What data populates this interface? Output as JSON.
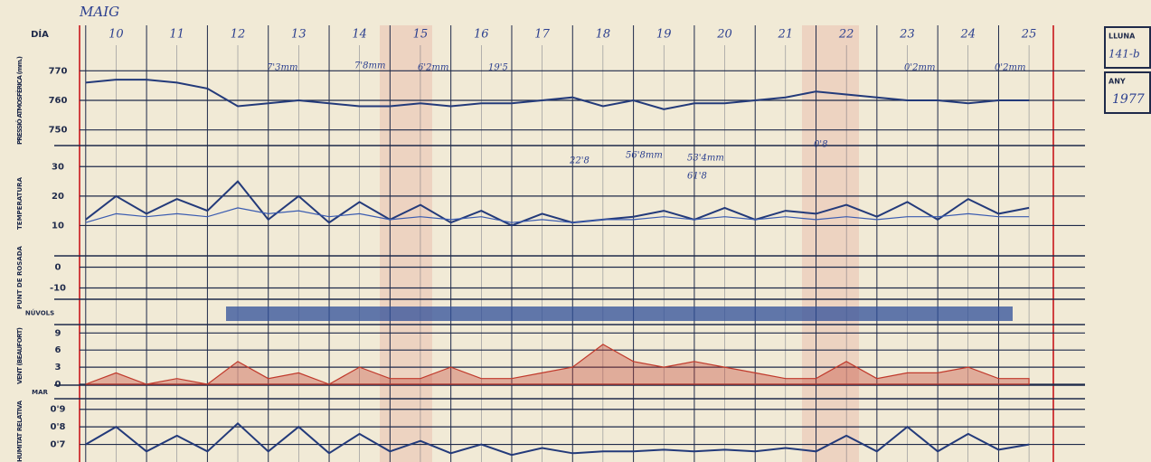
{
  "header": {
    "month": "MAIG",
    "day_label": "DÍA"
  },
  "side": {
    "moon_label": "LLUNA",
    "moon_value": "141-b",
    "year_label": "ANY",
    "year": "1977"
  },
  "chart_data": [
    {
      "type": "line",
      "ylabel": "PRESSIÓ ATMOSFÈRICA (mm.)",
      "xlim": [
        9.4,
        25.4
      ],
      "xticks": [
        10,
        11,
        12,
        13,
        14,
        15,
        16,
        17,
        18,
        19,
        20,
        21,
        22,
        23,
        24,
        25
      ],
      "ylim": [
        745,
        775
      ],
      "yticks": [
        750,
        760,
        770
      ],
      "x": [
        9.5,
        10,
        10.5,
        11,
        11.5,
        12,
        12.5,
        13,
        13.5,
        14,
        14.5,
        15,
        15.5,
        16,
        16.5,
        17,
        17.5,
        18,
        18.5,
        19,
        19.5,
        20,
        20.5,
        21,
        21.5,
        22,
        22.5,
        23,
        23.5,
        24,
        24.5,
        25
      ],
      "series": [
        {
          "color": "#233a7a",
          "values": [
            766,
            767,
            767,
            766,
            764,
            758,
            759,
            760,
            759,
            758,
            758,
            759,
            758,
            759,
            759,
            760,
            761,
            758,
            760,
            757,
            759,
            759,
            760,
            761,
            763,
            762,
            761,
            760,
            760,
            759,
            760,
            760
          ]
        }
      ],
      "annotations": [
        "7'3mm",
        "7'8mm",
        "6'2mm",
        "19'5",
        "22'8",
        "56'8mm",
        "53'4mm",
        "61'8",
        "0'8",
        "0'2mm",
        "0'2mm"
      ]
    },
    {
      "type": "line",
      "ylabel": "TEMPERATURA",
      "xlim": [
        9.4,
        25.4
      ],
      "ylim": [
        0,
        35
      ],
      "yticks": [
        10,
        20,
        30
      ],
      "x": [
        9.5,
        10,
        10.5,
        11,
        11.5,
        12,
        12.5,
        13,
        13.5,
        14,
        14.5,
        15,
        15.5,
        16,
        16.5,
        17,
        17.5,
        18,
        18.5,
        19,
        19.5,
        20,
        20.5,
        21,
        21.5,
        22,
        22.5,
        23,
        23.5,
        24,
        24.5,
        25
      ],
      "series": [
        {
          "color": "#233a7a",
          "values": [
            12,
            20,
            14,
            19,
            15,
            25,
            12,
            20,
            11,
            18,
            12,
            17,
            11,
            15,
            10,
            14,
            11,
            12,
            13,
            15,
            12,
            16,
            12,
            15,
            14,
            17,
            13,
            18,
            12,
            19,
            14,
            16
          ]
        },
        {
          "color": "#3a5bb0",
          "values": [
            11,
            14,
            13,
            14,
            13,
            16,
            14,
            15,
            13,
            14,
            12,
            13,
            12,
            13,
            11,
            12,
            11,
            12,
            12,
            13,
            12,
            13,
            12,
            13,
            12,
            13,
            12,
            13,
            13,
            14,
            13,
            13
          ]
        }
      ]
    },
    {
      "type": "line",
      "ylabel": "PUNT DE ROSADA",
      "xlim": [
        9.4,
        25.4
      ],
      "ylim": [
        -15,
        5
      ],
      "yticks": [
        -10,
        0
      ]
    },
    {
      "type": "strip",
      "ylabel": "NÚVOLS"
    },
    {
      "type": "area",
      "ylabel": "VENT (BEAUFORT)",
      "xlim": [
        9.4,
        25.4
      ],
      "ylim": [
        0,
        10
      ],
      "yticks": [
        0,
        3,
        6,
        9
      ],
      "x": [
        9.5,
        10,
        10.5,
        11,
        11.5,
        12,
        12.5,
        13,
        13.5,
        14,
        14.5,
        15,
        15.5,
        16,
        16.5,
        17,
        17.5,
        18,
        18.5,
        19,
        19.5,
        20,
        20.5,
        21,
        21.5,
        22,
        22.5,
        23,
        23.5,
        24,
        24.5,
        25
      ],
      "series": [
        {
          "color": "#c0392b",
          "values": [
            0,
            2,
            0,
            1,
            0,
            4,
            1,
            2,
            0,
            3,
            1,
            1,
            3,
            1,
            1,
            2,
            3,
            7,
            4,
            3,
            4,
            3,
            2,
            1,
            1,
            4,
            1,
            2,
            2,
            3,
            1,
            1
          ]
        }
      ]
    },
    {
      "type": "strip",
      "ylabel": "MAR"
    },
    {
      "type": "line",
      "ylabel": "HUMITAT RELATIVA",
      "xlim": [
        9.4,
        25.4
      ],
      "ylim": [
        0.6,
        0.95
      ],
      "yticks": [
        {
          "value": 0.9,
          "label": "0'9"
        },
        {
          "value": 0.8,
          "label": "0'8"
        },
        {
          "value": 0.7,
          "label": "0'7"
        }
      ],
      "x": [
        9.5,
        10,
        10.5,
        11,
        11.5,
        12,
        12.5,
        13,
        13.5,
        14,
        14.5,
        15,
        15.5,
        16,
        16.5,
        17,
        17.5,
        18,
        18.5,
        19,
        19.5,
        20,
        20.5,
        21,
        21.5,
        22,
        22.5,
        23,
        23.5,
        24,
        24.5,
        25
      ],
      "series": [
        {
          "color": "#233a7a",
          "values": [
            0.7,
            0.8,
            0.66,
            0.75,
            0.66,
            0.82,
            0.66,
            0.8,
            0.65,
            0.76,
            0.66,
            0.72,
            0.65,
            0.7,
            0.64,
            0.68,
            0.65,
            0.66,
            0.66,
            0.67,
            0.66,
            0.67,
            0.66,
            0.68,
            0.66,
            0.75,
            0.66,
            0.8,
            0.66,
            0.76,
            0.67,
            0.7
          ]
        }
      ]
    }
  ]
}
